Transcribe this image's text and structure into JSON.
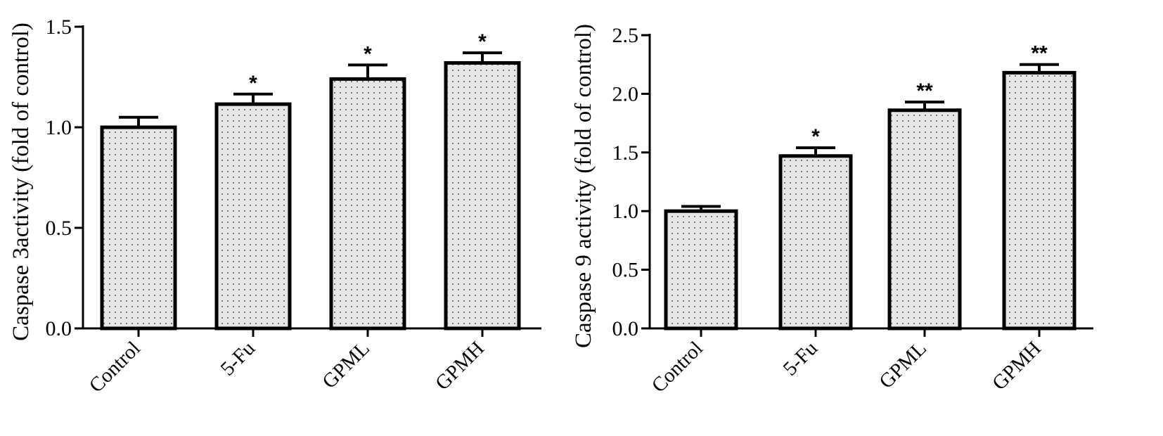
{
  "chart_data": [
    {
      "type": "bar",
      "title": "",
      "xlabel": "",
      "ylabel": "Caspase 3activity (fold of control)",
      "categories": [
        "Control",
        "5-Fu",
        "GPML",
        "GPMH"
      ],
      "values": [
        1.0,
        1.115,
        1.24,
        1.32
      ],
      "errors": [
        0.05,
        0.05,
        0.07,
        0.05
      ],
      "significance": [
        "",
        "*",
        "*",
        "*"
      ],
      "ylim": [
        0,
        1.5
      ],
      "yticks": [
        "0.0",
        "0.5",
        "1.0",
        "1.5"
      ],
      "ytick_values": [
        0,
        0.5,
        1.0,
        1.5
      ],
      "grid": false,
      "fill": "dotted gray pattern",
      "colors": {
        "bar_fill": "#e6e6e6",
        "dots": "#7a7a7a",
        "outline": "#000000"
      }
    },
    {
      "type": "bar",
      "title": "",
      "xlabel": "",
      "ylabel": "Caspase 9 activity (fold of control)",
      "categories": [
        "Control",
        "5-Fu",
        "GPML",
        "GPMH"
      ],
      "values": [
        1.0,
        1.47,
        1.86,
        2.18
      ],
      "errors": [
        0.04,
        0.07,
        0.07,
        0.07
      ],
      "significance": [
        "",
        "*",
        "**",
        "**"
      ],
      "ylim": [
        0,
        2.5
      ],
      "yticks": [
        "0.0",
        "0.5",
        "1.0",
        "1.5",
        "2.0",
        "2.5"
      ],
      "ytick_values": [
        0,
        0.5,
        1.0,
        1.5,
        2.0,
        2.5
      ],
      "grid": false,
      "fill": "dotted gray pattern",
      "colors": {
        "bar_fill": "#e6e6e6",
        "dots": "#7a7a7a",
        "outline": "#000000"
      }
    }
  ]
}
